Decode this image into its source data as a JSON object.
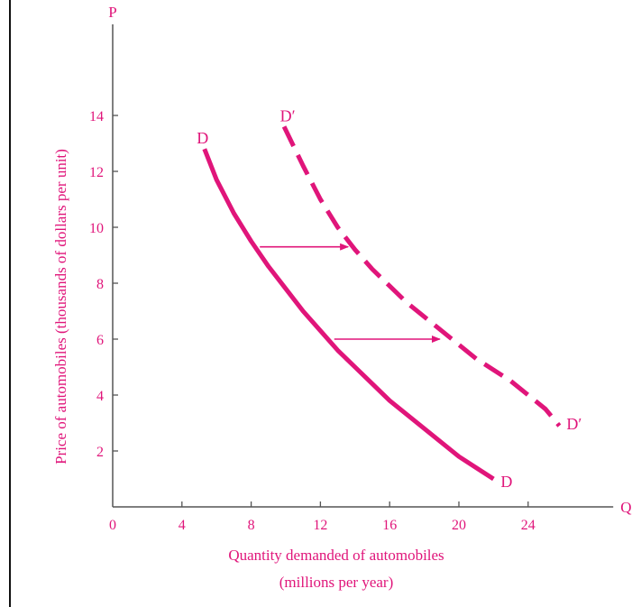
{
  "chart_data": {
    "type": "line",
    "x_axis_symbol": "Q",
    "y_axis_symbol": "P",
    "xlabel": "Quantity demanded of automobiles",
    "xlabel_sub": "(millions per year)",
    "ylabel": "Price of automobiles (thousands of dollars per unit)",
    "xlim": [
      0,
      28.5
    ],
    "ylim": [
      0,
      17
    ],
    "x_ticks": [
      0,
      4,
      8,
      12,
      16,
      20,
      24
    ],
    "y_ticks": [
      2,
      4,
      6,
      8,
      10,
      12,
      14
    ],
    "grid": false,
    "series": [
      {
        "name": "D",
        "style": "solid",
        "x": [
          5.3,
          6.0,
          7.0,
          8.0,
          9.0,
          10.0,
          11.0,
          12.0,
          13.0,
          14.0,
          15.0,
          16.0,
          17.0,
          18.0,
          19.0,
          20.0,
          21.0,
          22.0
        ],
        "y": [
          12.8,
          11.7,
          10.5,
          9.5,
          8.6,
          7.8,
          7.0,
          6.3,
          5.6,
          5.0,
          4.4,
          3.8,
          3.3,
          2.8,
          2.3,
          1.8,
          1.4,
          1.0
        ],
        "end_labels": [
          "D",
          "D"
        ]
      },
      {
        "name": "D′",
        "style": "dashed",
        "x": [
          9.9,
          11.0,
          12.0,
          13.0,
          14.0,
          15.0,
          16.0,
          17.0,
          18.0,
          19.0,
          20.0,
          21.0,
          22.0,
          23.0,
          24.0,
          25.0,
          25.8
        ],
        "y": [
          13.6,
          12.2,
          11.0,
          10.0,
          9.2,
          8.5,
          7.9,
          7.3,
          6.8,
          6.3,
          5.8,
          5.3,
          4.9,
          4.5,
          4.0,
          3.5,
          2.9
        ],
        "end_labels": [
          "D′",
          "D′"
        ]
      }
    ],
    "annotations": [
      {
        "type": "arrow",
        "from": [
          8.5,
          9.3
        ],
        "to": [
          13.6,
          9.3
        ]
      },
      {
        "type": "arrow",
        "from": [
          12.8,
          6.0
        ],
        "to": [
          18.9,
          6.0
        ]
      }
    ]
  },
  "colors": {
    "accent": "#e0157a",
    "axis": "#555555",
    "rule": "#111111"
  }
}
